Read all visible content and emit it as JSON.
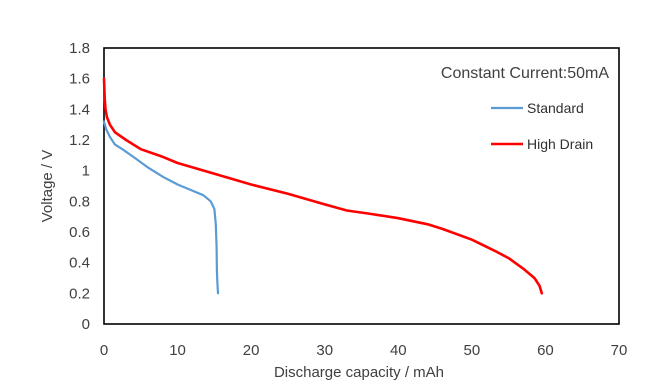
{
  "chart_data": {
    "type": "line",
    "title": "",
    "annotation": "Constant Current:50mA",
    "xlabel": "Discharge capacity / mAh",
    "ylabel": "Voltage / V",
    "xlim": [
      0,
      70
    ],
    "ylim": [
      0,
      1.8
    ],
    "xticks": [
      0,
      10,
      20,
      30,
      40,
      50,
      60,
      70
    ],
    "yticks": [
      0,
      0.2,
      0.4,
      0.6,
      0.8,
      1,
      1.2,
      1.4,
      1.6,
      1.8
    ],
    "ytick_labels": [
      "0",
      "0.2",
      "0.4",
      "0.6",
      "0.8",
      "1",
      "1.2",
      "1.4",
      "1.6",
      "1.8"
    ],
    "grid": false,
    "legend_position": "right",
    "series": [
      {
        "name": "Standard",
        "color": "#5b9bd5",
        "x": [
          0,
          0.3,
          0.8,
          1.5,
          2.5,
          4,
          6,
          8,
          10,
          12,
          13.5,
          14.5,
          15,
          15.2,
          15.3,
          15.35,
          15.4,
          15.5
        ],
        "y": [
          1.32,
          1.27,
          1.22,
          1.17,
          1.14,
          1.09,
          1.02,
          0.96,
          0.91,
          0.87,
          0.84,
          0.8,
          0.75,
          0.65,
          0.5,
          0.35,
          0.28,
          0.2
        ]
      },
      {
        "name": "High Drain",
        "color": "#ff0000",
        "x": [
          0,
          0.1,
          0.2,
          0.4,
          0.8,
          1.5,
          3,
          5,
          8,
          10,
          15,
          20,
          25,
          30,
          33,
          36,
          40,
          44,
          46,
          50,
          53,
          55,
          57,
          58.5,
          59.2,
          59.5
        ],
        "y": [
          1.6,
          1.47,
          1.4,
          1.35,
          1.3,
          1.25,
          1.2,
          1.14,
          1.09,
          1.05,
          0.98,
          0.91,
          0.85,
          0.78,
          0.74,
          0.72,
          0.69,
          0.65,
          0.62,
          0.55,
          0.48,
          0.43,
          0.36,
          0.3,
          0.25,
          0.2
        ]
      }
    ]
  }
}
